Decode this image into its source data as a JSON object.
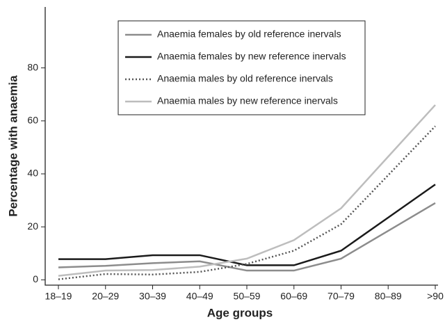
{
  "chart_data": {
    "type": "line",
    "xlabel": "Age groups",
    "ylabel": "Percentage with anaemia",
    "categories": [
      "18–19",
      "20–29",
      "30–39",
      "40–49",
      "50–59",
      "60–69",
      "70–79",
      "80–89",
      ">90"
    ],
    "ylim": [
      -2,
      103
    ],
    "yticks": [
      0,
      20,
      40,
      60,
      80
    ],
    "series": [
      {
        "name": "Anaemia females by old reference inervals",
        "color": "#8c8c8c",
        "style": "solid",
        "values": [
          4.7,
          5.3,
          6.3,
          7,
          3.5,
          3.5,
          8,
          18.5,
          29
        ]
      },
      {
        "name": "Anaemia females by new reference inervals",
        "color": "#1a1a1a",
        "style": "solid",
        "values": [
          7.8,
          7.8,
          9.3,
          9.3,
          5.5,
          5.5,
          11,
          23.5,
          36
        ]
      },
      {
        "name": "Anaemia males by old reference inervals",
        "color": "#555555",
        "style": "dotted",
        "values": [
          0.2,
          2.2,
          2,
          3,
          6,
          11,
          21,
          39.5,
          58
        ]
      },
      {
        "name": "Anaemia males by new reference inervals",
        "color": "#bdbdbd",
        "style": "solid",
        "values": [
          1.5,
          3.5,
          3.7,
          5,
          8,
          15,
          27,
          46.5,
          66
        ]
      }
    ]
  }
}
